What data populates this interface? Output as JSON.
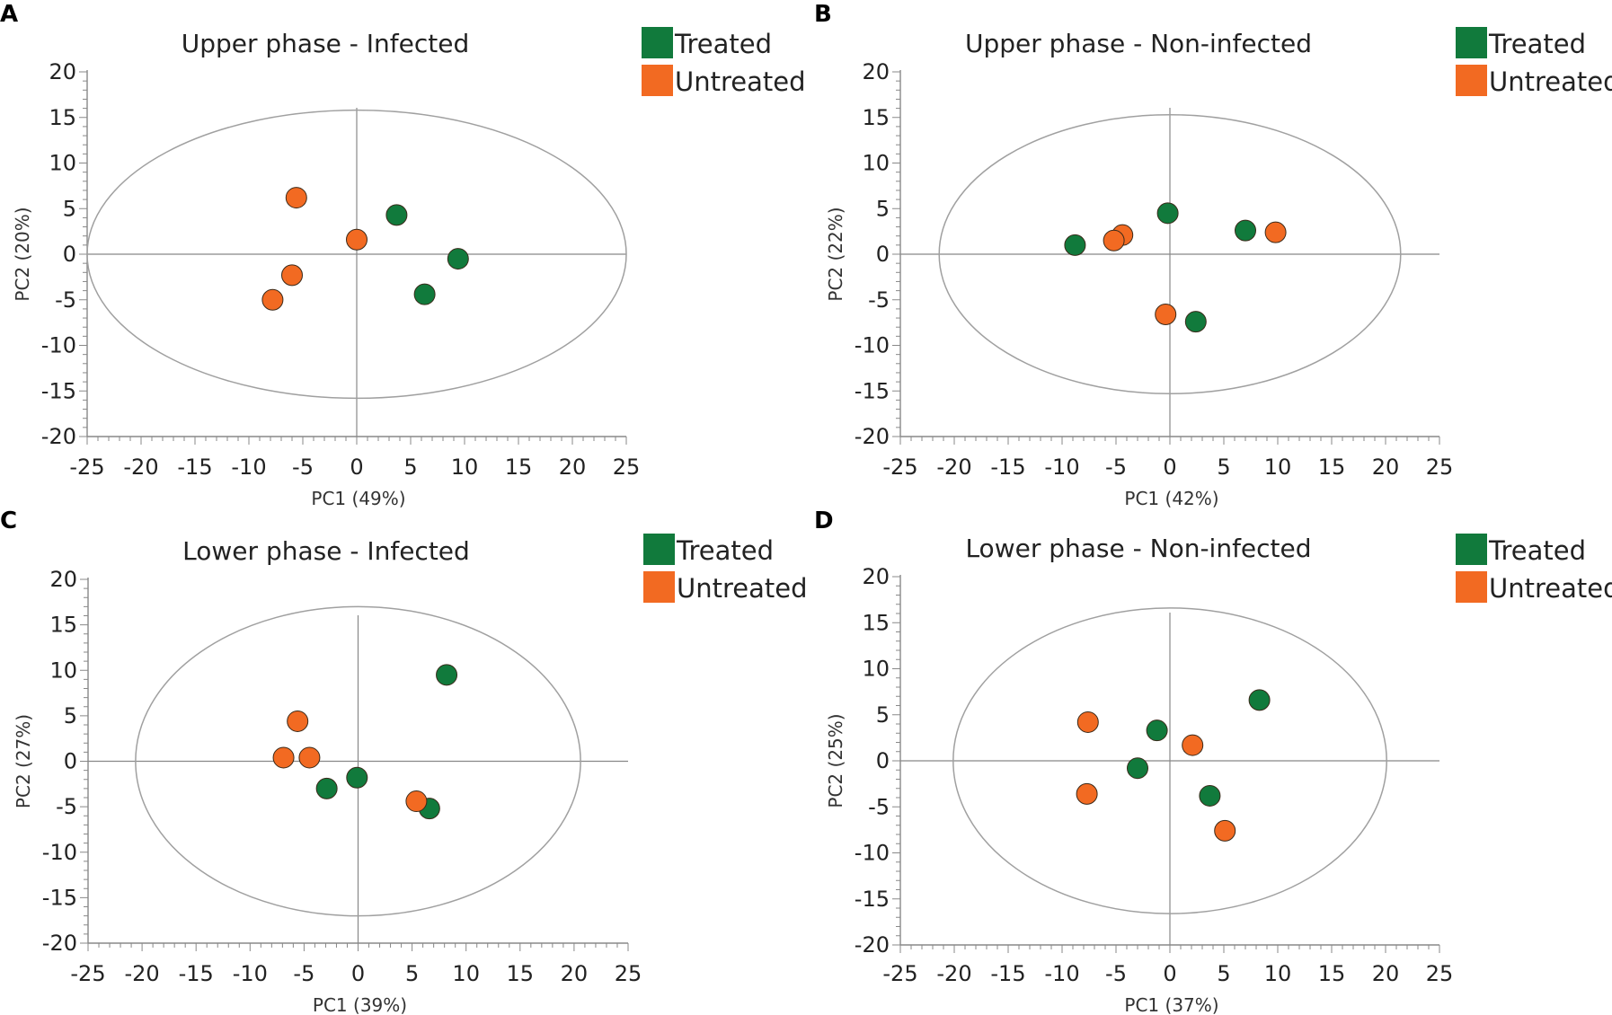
{
  "colors": {
    "treated": "#117a3c",
    "untreated": "#f26a22",
    "axis": "#888888",
    "ellipse": "#a0a0a0",
    "marker_edge": "#3a2a1a"
  },
  "chart_data": [
    {
      "panel": "A",
      "type": "scatter",
      "title": "Upper phase - Infected",
      "xlabel": "PC1 (49%)",
      "ylabel": "PC2 (20%)",
      "xlim": [
        -25,
        25
      ],
      "ylim": [
        -20,
        20
      ],
      "xticks": [
        -25,
        -20,
        -15,
        -10,
        -5,
        0,
        5,
        10,
        15,
        20,
        25
      ],
      "yticks": [
        20,
        15,
        10,
        5,
        0,
        -5,
        -10,
        -15,
        -20
      ],
      "legend": [
        "Treated",
        "Untreated"
      ],
      "ellipse": {
        "center": [
          0,
          0
        ],
        "rx": 25,
        "ry": 15.8
      },
      "series": [
        {
          "name": "Treated",
          "points": [
            [
              3.7,
              4.3
            ],
            [
              9.4,
              -0.5
            ],
            [
              6.3,
              -4.4
            ]
          ]
        },
        {
          "name": "Untreated",
          "points": [
            [
              -5.6,
              6.2
            ],
            [
              0,
              1.6
            ],
            [
              -6.0,
              -2.3
            ],
            [
              -7.8,
              -5.0
            ]
          ]
        }
      ]
    },
    {
      "panel": "B",
      "type": "scatter",
      "title": "Upper phase - Non-infected",
      "xlabel": "PC1 (42%)",
      "ylabel": "PC2 (22%)",
      "xlim": [
        -25,
        25
      ],
      "ylim": [
        -20,
        20
      ],
      "xticks": [
        -25,
        -20,
        -15,
        -10,
        -5,
        0,
        5,
        10,
        15,
        20,
        25
      ],
      "yticks": [
        20,
        15,
        10,
        5,
        0,
        -5,
        -10,
        -15,
        -20
      ],
      "legend": [
        "Treated",
        "Untreated"
      ],
      "ellipse": {
        "center": [
          0,
          0
        ],
        "rx": 21.4,
        "ry": 15.3
      },
      "series": [
        {
          "name": "Treated",
          "points": [
            [
              -0.2,
              4.5
            ],
            [
              7.0,
              2.6
            ],
            [
              -8.8,
              1.0
            ],
            [
              2.4,
              -7.4
            ]
          ]
        },
        {
          "name": "Untreated",
          "points": [
            [
              -4.4,
              2.1
            ],
            [
              -5.2,
              1.5
            ],
            [
              9.8,
              2.4
            ],
            [
              -0.4,
              -6.6
            ]
          ]
        }
      ]
    },
    {
      "panel": "C",
      "type": "scatter",
      "title": "Lower phase - Infected",
      "xlabel": "PC1 (39%)",
      "ylabel": "PC2 (27%)",
      "xlim": [
        -25,
        25
      ],
      "ylim": [
        -20,
        20
      ],
      "xticks": [
        -25,
        -20,
        -15,
        -10,
        -5,
        0,
        5,
        10,
        15,
        20,
        25
      ],
      "yticks": [
        20,
        15,
        10,
        5,
        0,
        -5,
        -10,
        -15,
        -20
      ],
      "legend": [
        "Treated",
        "Untreated"
      ],
      "ellipse": {
        "center": [
          0,
          0
        ],
        "rx": 20.6,
        "ry": 17.0
      },
      "series": [
        {
          "name": "Treated",
          "points": [
            [
              8.2,
              9.5
            ],
            [
              -0.1,
              -1.8
            ],
            [
              -2.9,
              -3.0
            ],
            [
              6.6,
              -5.2
            ]
          ]
        },
        {
          "name": "Untreated",
          "points": [
            [
              -5.6,
              4.4
            ],
            [
              -6.9,
              0.4
            ],
            [
              -4.5,
              0.4
            ],
            [
              5.4,
              -4.4
            ]
          ]
        }
      ]
    },
    {
      "panel": "D",
      "type": "scatter",
      "title": "Lower phase - Non-infected",
      "xlabel": "PC1 (37%)",
      "ylabel": "PC2 (25%)",
      "xlim": [
        -25,
        25
      ],
      "ylim": [
        -20,
        20
      ],
      "xticks": [
        -25,
        -20,
        -15,
        -10,
        -5,
        0,
        5,
        10,
        15,
        20,
        25
      ],
      "yticks": [
        20,
        15,
        10,
        5,
        0,
        -5,
        -10,
        -15,
        -20
      ],
      "legend": [
        "Treated",
        "Untreated"
      ],
      "ellipse": {
        "center": [
          0,
          0
        ],
        "rx": 20.1,
        "ry": 16.6
      },
      "series": [
        {
          "name": "Treated",
          "points": [
            [
              8.3,
              6.6
            ],
            [
              -1.2,
              3.3
            ],
            [
              -3.0,
              -0.8
            ],
            [
              3.7,
              -3.8
            ]
          ]
        },
        {
          "name": "Untreated",
          "points": [
            [
              -7.6,
              4.2
            ],
            [
              2.1,
              1.7
            ],
            [
              -7.7,
              -3.6
            ],
            [
              5.1,
              -7.6
            ]
          ]
        }
      ]
    }
  ]
}
